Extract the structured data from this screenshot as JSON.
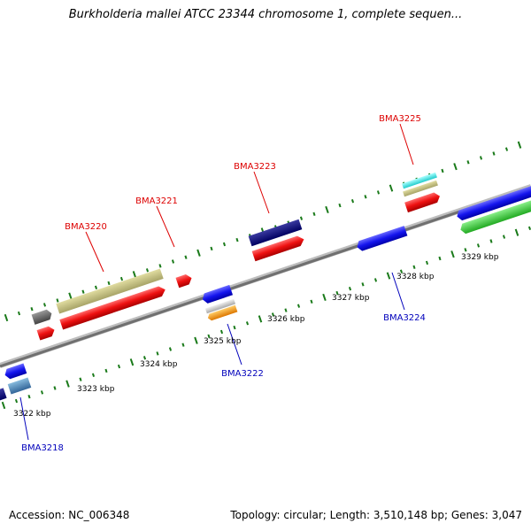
{
  "title": "Burkholderia mallei ATCC 23344 chromosome 1, complete sequen...",
  "footer": {
    "accession": "Accession: NC_006348",
    "summary": "Topology: circular; Length: 3,510,148 bp; Genes: 3,047"
  },
  "scale_labels": [
    "3322 kbp",
    "3323 kbp",
    "3324 kbp",
    "3325 kbp",
    "3326 kbp",
    "3327 kbp",
    "3328 kbp",
    "3329 kbp"
  ],
  "gene_labels": [
    {
      "name": "BMA3220",
      "strand": "top",
      "color": "#dd0000"
    },
    {
      "name": "BMA3221",
      "strand": "top",
      "color": "#dd0000"
    },
    {
      "name": "BMA3223",
      "strand": "top",
      "color": "#dd0000"
    },
    {
      "name": "BMA3225",
      "strand": "top",
      "color": "#dd0000"
    },
    {
      "name": "BMA3218",
      "strand": "bottom",
      "color": "#0000bb"
    },
    {
      "name": "BMA3222",
      "strand": "bottom",
      "color": "#0000bb"
    },
    {
      "name": "BMA3224",
      "strand": "bottom",
      "color": "#0000bb"
    }
  ],
  "colors": {
    "backbone": "#8a8a8a",
    "tick": "#1a7a1a",
    "forward_gene": "#ee1111",
    "reverse_gene": "#1515ee"
  }
}
